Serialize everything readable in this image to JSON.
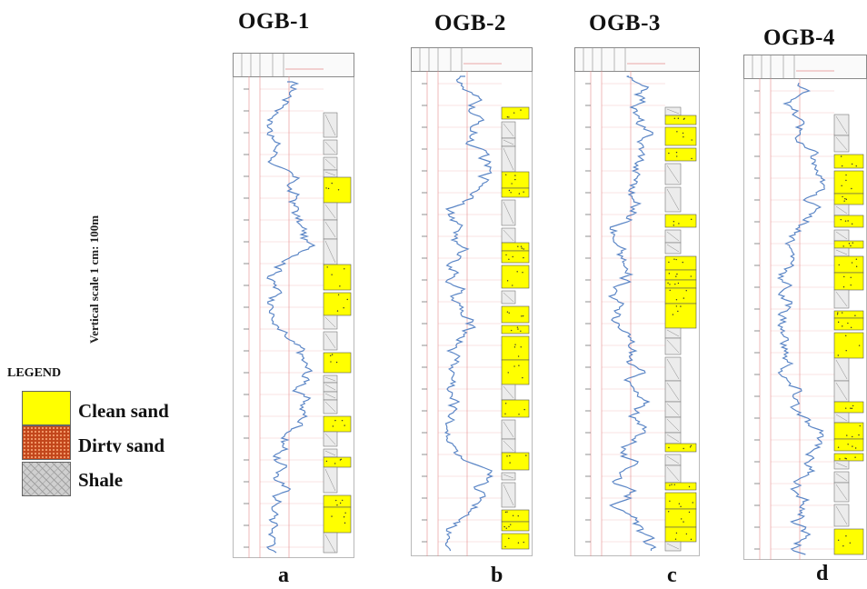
{
  "wells": [
    {
      "id": "OGB-1",
      "letter": "a"
    },
    {
      "id": "OGB-2",
      "letter": "b"
    },
    {
      "id": "OGB-3",
      "letter": "c"
    },
    {
      "id": "OGB-4",
      "letter": "d"
    }
  ],
  "scale_label": "Vertical scale 1 cm: 100m",
  "legend": {
    "title": "LEGEND",
    "items": [
      {
        "label": "Clean sand",
        "color": "#ffff00"
      },
      {
        "label": "Dirty sand",
        "color": "#c2461b"
      },
      {
        "label": "Shale",
        "color": "#cfcfcf"
      }
    ]
  },
  "colors": {
    "gamma_curve": "#5b86c6",
    "depth_lines": "#e58a8a",
    "sand": "#ffff00"
  }
}
